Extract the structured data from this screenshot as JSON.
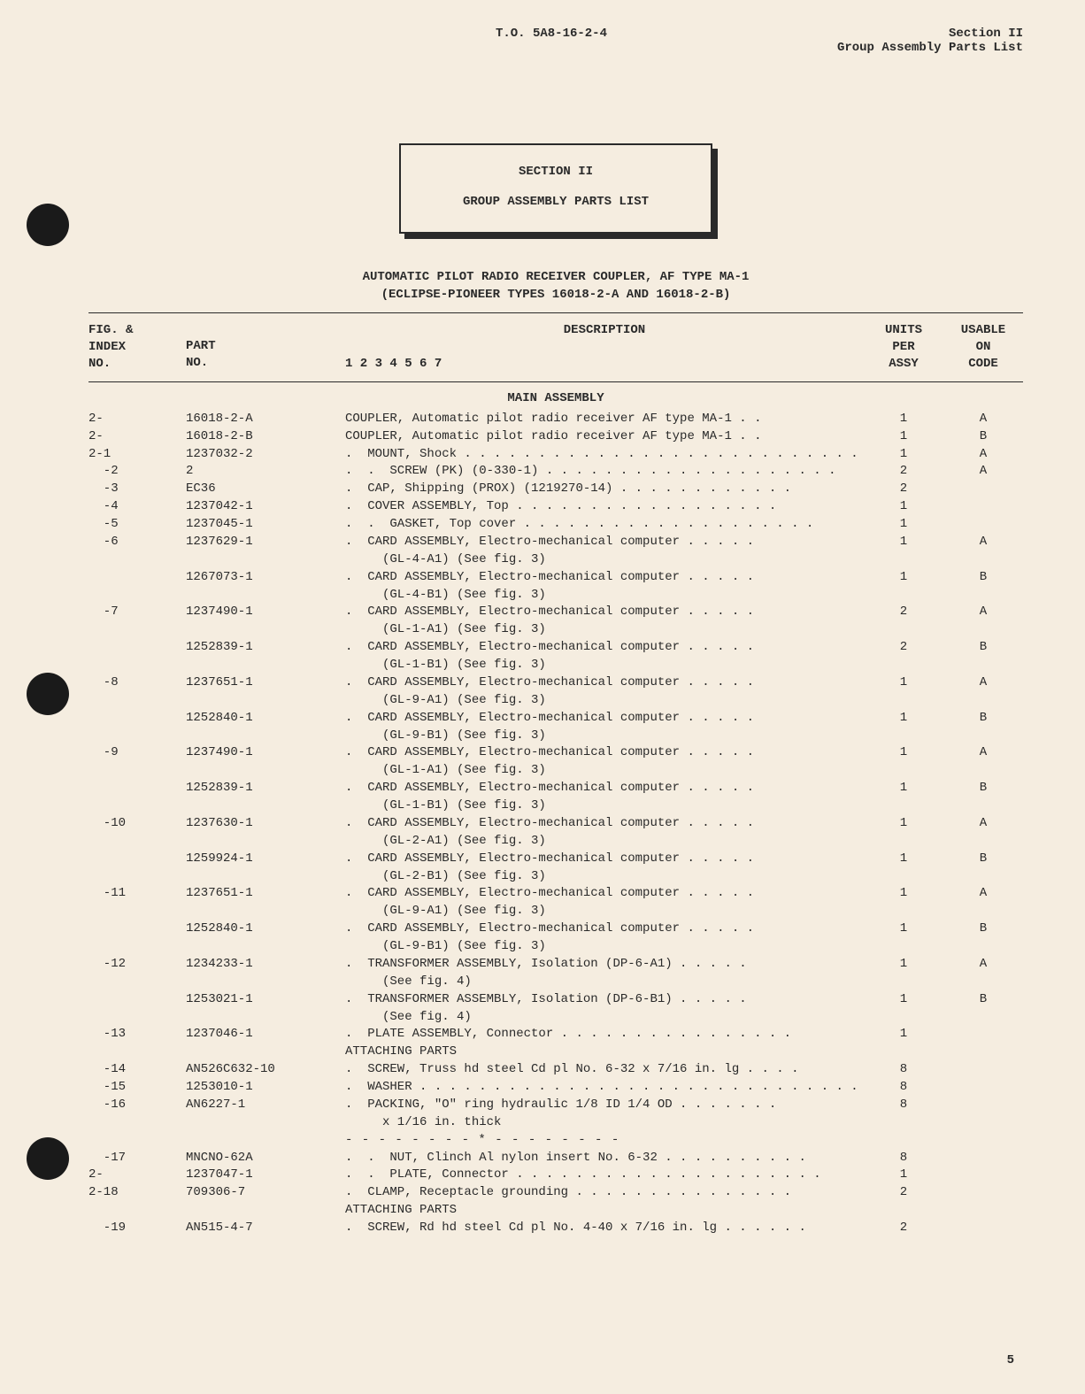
{
  "header": {
    "center": "T.O. 5A8-16-2-4",
    "right_line1": "Section II",
    "right_line2": "Group Assembly Parts List"
  },
  "title_box": {
    "line1": "SECTION II",
    "line2": "GROUP ASSEMBLY PARTS LIST"
  },
  "doc_title": {
    "line1": "AUTOMATIC PILOT RADIO RECEIVER COUPLER, AF TYPE MA-1",
    "line2": "(ECLIPSE-PIONEER TYPES 16018-2-A AND 16018-2-B)"
  },
  "col_headers": {
    "idx": "FIG. &\nINDEX\nNO.",
    "part": "PART\nNO.",
    "desc_num": "1  2  3  4  5  6  7",
    "desc_title": "DESCRIPTION",
    "units": "UNITS\nPER\nASSY",
    "code": "USABLE\nON\nCODE"
  },
  "section_title": "MAIN ASSEMBLY",
  "attaching_label": "ATTACHING PARTS",
  "separator": "- - - - - - - - * - - - - - - - -",
  "page_number": "5",
  "rows": [
    {
      "idx": "2-",
      "part": "16018-2-A",
      "desc": "COUPLER, Automatic pilot radio receiver AF type MA-1 . .",
      "units": "1",
      "code": "A"
    },
    {
      "idx": "2-",
      "part": "16018-2-B",
      "desc": "COUPLER, Automatic pilot radio receiver AF type MA-1 . .",
      "units": "1",
      "code": "B"
    },
    {
      "idx": "2-1",
      "part": "1237032-2",
      "desc": ".  MOUNT, Shock . . . . . . . . . . . . . . . . . . . . . . . . . . .",
      "units": "1",
      "code": "A"
    },
    {
      "idx": "  -2",
      "part": "2",
      "desc": ".  .  SCREW (PK) (0-330-1) . . . . . . . . . . . . . . . . . . . .",
      "units": "2",
      "code": "A"
    },
    {
      "idx": "  -3",
      "part": "EC36",
      "desc": ".  CAP, Shipping (PROX) (1219270-14) . . . . . . . . . . . .",
      "units": "2",
      "code": ""
    },
    {
      "idx": "  -4",
      "part": "1237042-1",
      "desc": ".  COVER ASSEMBLY, Top . . . . . . . . . . . . . . . . . .",
      "units": "1",
      "code": ""
    },
    {
      "idx": "  -5",
      "part": "1237045-1",
      "desc": ".  .  GASKET, Top cover . . . . . . . . . . . . . . . . . . . .",
      "units": "1",
      "code": ""
    },
    {
      "idx": "  -6",
      "part": "1237629-1",
      "desc": ".  CARD ASSEMBLY, Electro-mechanical computer . . . . .",
      "units": "1",
      "code": "A"
    },
    {
      "idx": "",
      "part": "",
      "desc": "     (GL-4-A1) (See fig. 3)",
      "units": "",
      "code": ""
    },
    {
      "idx": "",
      "part": "1267073-1",
      "desc": ".  CARD ASSEMBLY, Electro-mechanical computer . . . . .",
      "units": "1",
      "code": "B"
    },
    {
      "idx": "",
      "part": "",
      "desc": "     (GL-4-B1) (See fig. 3)",
      "units": "",
      "code": ""
    },
    {
      "idx": "  -7",
      "part": "1237490-1",
      "desc": ".  CARD ASSEMBLY, Electro-mechanical computer . . . . .",
      "units": "2",
      "code": "A"
    },
    {
      "idx": "",
      "part": "",
      "desc": "     (GL-1-A1) (See fig. 3)",
      "units": "",
      "code": ""
    },
    {
      "idx": "",
      "part": "1252839-1",
      "desc": ".  CARD ASSEMBLY, Electro-mechanical computer . . . . .",
      "units": "2",
      "code": "B"
    },
    {
      "idx": "",
      "part": "",
      "desc": "     (GL-1-B1) (See fig. 3)",
      "units": "",
      "code": ""
    },
    {
      "idx": "  -8",
      "part": "1237651-1",
      "desc": ".  CARD ASSEMBLY, Electro-mechanical computer . . . . .",
      "units": "1",
      "code": "A"
    },
    {
      "idx": "",
      "part": "",
      "desc": "     (GL-9-A1) (See fig. 3)",
      "units": "",
      "code": ""
    },
    {
      "idx": "",
      "part": "1252840-1",
      "desc": ".  CARD ASSEMBLY, Electro-mechanical computer . . . . .",
      "units": "1",
      "code": "B"
    },
    {
      "idx": "",
      "part": "",
      "desc": "     (GL-9-B1) (See fig. 3)",
      "units": "",
      "code": ""
    },
    {
      "idx": "  -9",
      "part": "1237490-1",
      "desc": ".  CARD ASSEMBLY, Electro-mechanical computer . . . . .",
      "units": "1",
      "code": "A"
    },
    {
      "idx": "",
      "part": "",
      "desc": "     (GL-1-A1) (See fig. 3)",
      "units": "",
      "code": ""
    },
    {
      "idx": "",
      "part": "1252839-1",
      "desc": ".  CARD ASSEMBLY, Electro-mechanical computer . . . . .",
      "units": "1",
      "code": "B"
    },
    {
      "idx": "",
      "part": "",
      "desc": "     (GL-1-B1) (See fig. 3)",
      "units": "",
      "code": ""
    },
    {
      "idx": "  -10",
      "part": "1237630-1",
      "desc": ".  CARD ASSEMBLY, Electro-mechanical computer . . . . .",
      "units": "1",
      "code": "A"
    },
    {
      "idx": "",
      "part": "",
      "desc": "     (GL-2-A1) (See fig. 3)",
      "units": "",
      "code": ""
    },
    {
      "idx": "",
      "part": "1259924-1",
      "desc": ".  CARD ASSEMBLY, Electro-mechanical computer . . . . .",
      "units": "1",
      "code": "B"
    },
    {
      "idx": "",
      "part": "",
      "desc": "     (GL-2-B1) (See fig. 3)",
      "units": "",
      "code": ""
    },
    {
      "idx": "  -11",
      "part": "1237651-1",
      "desc": ".  CARD ASSEMBLY, Electro-mechanical computer . . . . .",
      "units": "1",
      "code": "A"
    },
    {
      "idx": "",
      "part": "",
      "desc": "     (GL-9-A1) (See fig. 3)",
      "units": "",
      "code": ""
    },
    {
      "idx": "",
      "part": "1252840-1",
      "desc": ".  CARD ASSEMBLY, Electro-mechanical computer . . . . .",
      "units": "1",
      "code": "B"
    },
    {
      "idx": "",
      "part": "",
      "desc": "     (GL-9-B1) (See fig. 3)",
      "units": "",
      "code": ""
    },
    {
      "idx": "  -12",
      "part": "1234233-1",
      "desc": ".  TRANSFORMER ASSEMBLY, Isolation (DP-6-A1) . . . . .",
      "units": "1",
      "code": "A"
    },
    {
      "idx": "",
      "part": "",
      "desc": "     (See fig. 4)",
      "units": "",
      "code": ""
    },
    {
      "idx": "",
      "part": "1253021-1",
      "desc": ".  TRANSFORMER ASSEMBLY, Isolation (DP-6-B1) . . . . .",
      "units": "1",
      "code": "B"
    },
    {
      "idx": "",
      "part": "",
      "desc": "     (See fig. 4)",
      "units": "",
      "code": ""
    },
    {
      "idx": "  -13",
      "part": "1237046-1",
      "desc": ".  PLATE ASSEMBLY, Connector . . . . . . . . . . . . . . . .",
      "units": "1",
      "code": ""
    },
    {
      "attaching": true
    },
    {
      "idx": "  -14",
      "part": "AN526C632-10",
      "desc": ".  SCREW, Truss hd steel Cd pl No. 6-32 x 7/16 in. lg . . . .",
      "units": "8",
      "code": ""
    },
    {
      "idx": "  -15",
      "part": "1253010-1",
      "desc": ".  WASHER . . . . . . . . . . . . . . . . . . . . . . . . . . . . . .",
      "units": "8",
      "code": ""
    },
    {
      "idx": "  -16",
      "part": "AN6227-1",
      "desc": ".  PACKING, \"O\" ring hydraulic 1/8 ID 1/4 OD . . . . . . .",
      "units": "8",
      "code": ""
    },
    {
      "idx": "",
      "part": "",
      "desc": "     x 1/16 in. thick",
      "units": "",
      "code": ""
    },
    {
      "separator": true
    },
    {
      "idx": "  -17",
      "part": "MNCNO-62A",
      "desc": ".  .  NUT, Clinch Al nylon insert No. 6-32 . . . . . . . . . .",
      "units": "8",
      "code": ""
    },
    {
      "idx": "2-",
      "part": "1237047-1",
      "desc": ".  .  PLATE, Connector . . . . . . . . . . . . . . . . . . . . .",
      "units": "1",
      "code": ""
    },
    {
      "idx": "2-18",
      "part": "709306-7",
      "desc": ".  CLAMP, Receptacle grounding . . . . . . . . . . . . . . .",
      "units": "2",
      "code": ""
    },
    {
      "attaching": true
    },
    {
      "idx": "  -19",
      "part": "AN515-4-7",
      "desc": ".  SCREW, Rd hd steel Cd pl No. 4-40 x 7/16 in. lg . . . . . .",
      "units": "2",
      "code": ""
    }
  ]
}
